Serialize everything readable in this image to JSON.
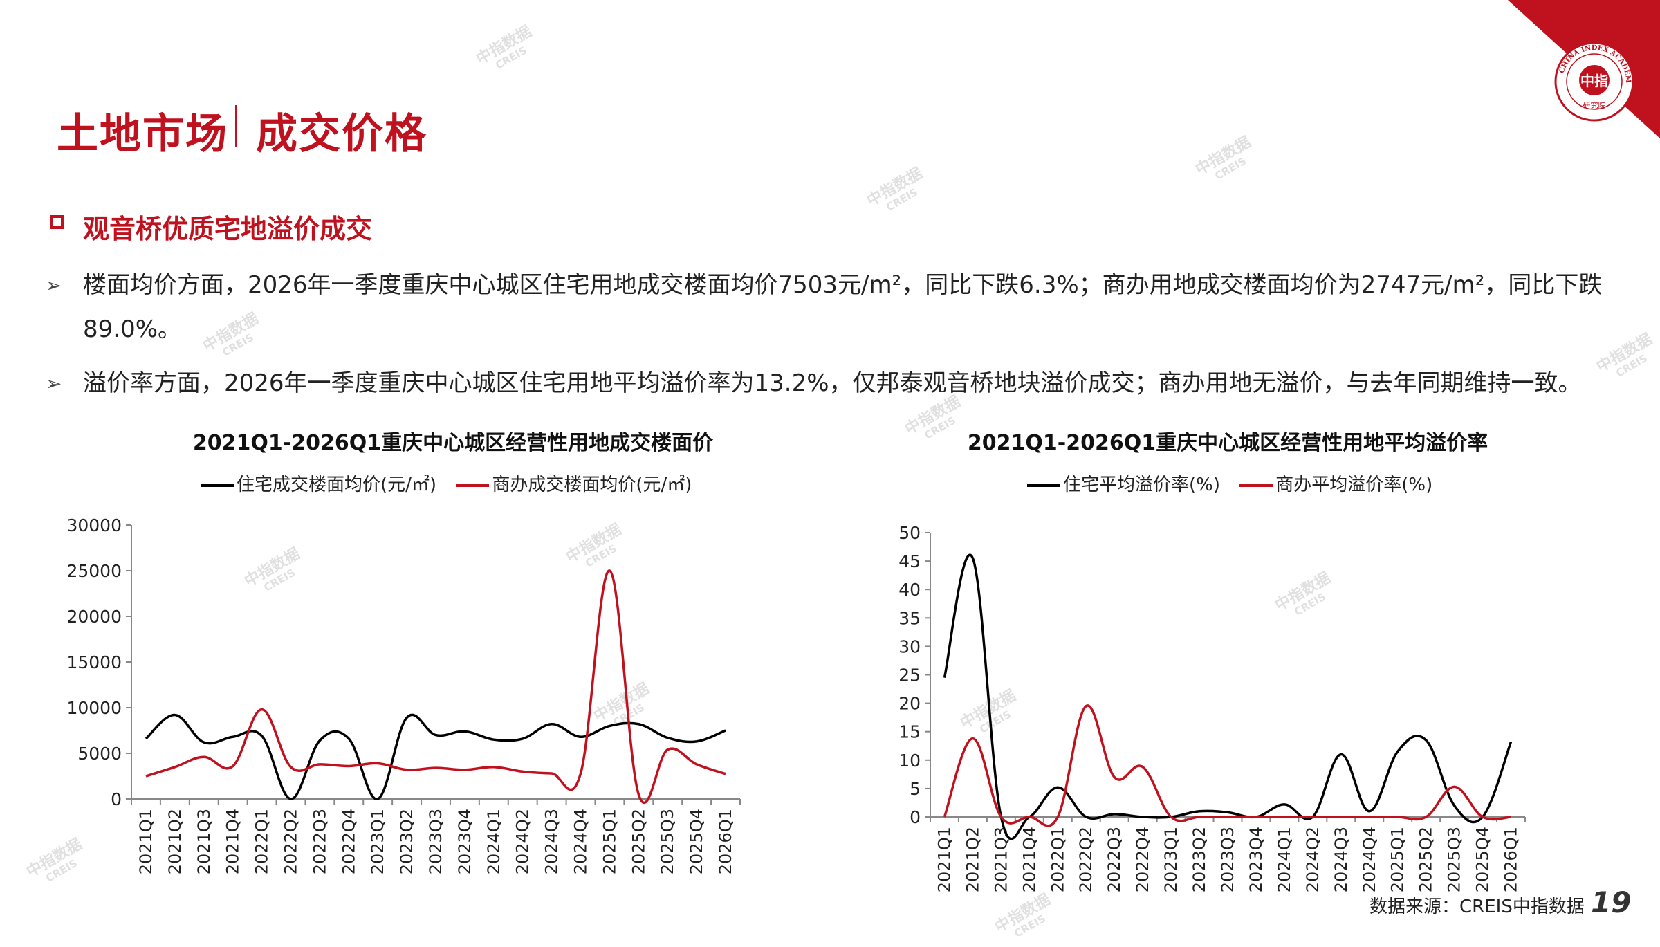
{
  "header": {
    "title_main": "土地市场",
    "title_sub": "成交价格"
  },
  "section": {
    "title": "观音桥优质宅地溢价成交"
  },
  "bullets": [
    {
      "text": "楼面均价方面，2026年一季度重庆中心城区住宅用地成交楼面均价7503元/m²，同比下跌6.3%；商办用地成交楼面均价为2747元/m²，同比下跌89.0%。"
    },
    {
      "text": "溢价率方面，2026年一季度重庆中心城区住宅用地平均溢价率为13.2%，仅邦泰观音桥地块溢价成交；商办用地无溢价，与去年同期维持一致。"
    }
  ],
  "icons": {
    "bullet": "chevron-right-icon",
    "section": "square-outline-icon"
  },
  "colors": {
    "accent": "#c0111f",
    "series_black": "#000000",
    "series_red": "#c0111f"
  },
  "chart_data": [
    {
      "type": "line",
      "title": "2021Q1-2026Q1重庆中心城区经营性用地成交楼面价",
      "categories": [
        "2021Q1",
        "2021Q2",
        "2021Q3",
        "2021Q4",
        "2022Q1",
        "2022Q2",
        "2022Q3",
        "2022Q4",
        "2023Q1",
        "2023Q2",
        "2023Q3",
        "2023Q4",
        "2024Q1",
        "2024Q2",
        "2024Q3",
        "2024Q4",
        "2025Q1",
        "2025Q2",
        "2025Q3",
        "2025Q4",
        "2026Q1"
      ],
      "series": [
        {
          "name": "住宅成交楼面均价(元/㎡)",
          "color": "#000000",
          "values": [
            6600,
            9200,
            6200,
            6800,
            6900,
            0,
            6400,
            6600,
            0,
            8900,
            7000,
            7400,
            6500,
            6600,
            8200,
            6800,
            8000,
            8200,
            6700,
            6300,
            7503
          ]
        },
        {
          "name": "商办成交楼面均价(元/㎡)",
          "color": "#c0111f",
          "values": [
            2500,
            3500,
            4600,
            3600,
            9800,
            3500,
            3800,
            3600,
            3900,
            3200,
            3400,
            3200,
            3500,
            3000,
            2800,
            2800,
            25000,
            500,
            5400,
            3800,
            2747
          ]
        }
      ],
      "ylim": [
        0,
        30000
      ],
      "yticks": [
        0,
        5000,
        10000,
        15000,
        20000,
        25000,
        30000
      ],
      "legend": "top"
    },
    {
      "type": "line",
      "title": "2021Q1-2026Q1重庆中心城区经营性用地平均溢价率",
      "categories": [
        "2021Q1",
        "2021Q2",
        "2021Q3",
        "2021Q4",
        "2022Q1",
        "2022Q2",
        "2022Q3",
        "2022Q4",
        "2023Q1",
        "2023Q2",
        "2023Q3",
        "2023Q4",
        "2024Q1",
        "2024Q2",
        "2024Q3",
        "2024Q4",
        "2025Q1",
        "2025Q2",
        "2025Q3",
        "2025Q4",
        "2026Q1"
      ],
      "series": [
        {
          "name": "住宅平均溢价率(%)",
          "color": "#000000",
          "values": [
            24.5,
            45.5,
            0,
            0,
            5.2,
            0,
            0.5,
            0,
            0,
            1.0,
            0.8,
            0,
            2.2,
            0,
            11.0,
            1.0,
            11.5,
            13.5,
            2.0,
            0,
            13.2
          ]
        },
        {
          "name": "商办平均溢价率(%)",
          "color": "#c0111f",
          "values": [
            0,
            13.8,
            0,
            0,
            0,
            19.5,
            7.0,
            8.8,
            0,
            0,
            0,
            0,
            0,
            0,
            0,
            0,
            0,
            0,
            5.3,
            0,
            0
          ]
        }
      ],
      "ylim": [
        0,
        50
      ],
      "yticks": [
        0,
        5,
        10,
        15,
        20,
        25,
        30,
        35,
        40,
        45,
        50
      ],
      "legend": "top"
    }
  ],
  "footer": {
    "source": "数据来源：CREIS中指数据",
    "page": "19"
  },
  "logo": {
    "text_top": "CHINA INDEX ACADEMY",
    "text_center": "中指",
    "text_bottom": "研究院"
  },
  "watermark": {
    "text_cn": "中指数据",
    "text_en": "CREIS"
  }
}
